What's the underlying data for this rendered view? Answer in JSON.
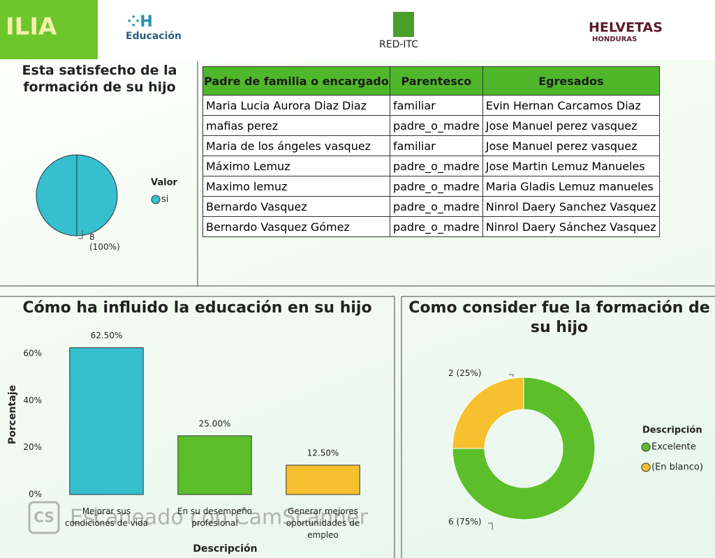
{
  "header": {
    "title": "ILIA",
    "logos": [
      "Educación",
      "RED-ITC",
      "HELVETAS",
      "HONDURAS"
    ]
  },
  "watermark": {
    "icon": "CS",
    "text": "Escaneado con CamScanner"
  },
  "table": {
    "columns": [
      "Padre de familia o encargado",
      "Parentesco",
      "Egresados"
    ],
    "rows": [
      [
        "Maria Lucia Aurora Diaz Diaz",
        "familiar",
        "Evin Hernan Carcamos Diaz"
      ],
      [
        "mafias perez",
        "padre_o_madre",
        "Jose Manuel perez vasquez"
      ],
      [
        "Maria de los ángeles vasquez",
        "familiar",
        "Jose Manuel perez vasquez"
      ],
      [
        "Máximo Lemuz",
        "padre_o_madre",
        "Jose Martin Lemuz Manueles"
      ],
      [
        "Maximo lemuz",
        "padre_o_madre",
        "Maria Gladis Lemuz manueles"
      ],
      [
        "Bernardo Vasquez",
        "padre_o_madre",
        "Ninrol Daery Sanchez Vasquez"
      ],
      [
        "Bernardo Vasquez Gómez",
        "padre_o_madre",
        "Ninrol Daery Sánchez Vasquez"
      ]
    ]
  },
  "chart_data": [
    {
      "type": "pie",
      "title": "Esta satisfecho de la formación de su hijo",
      "legend_title": "Valor",
      "categories": [
        "si"
      ],
      "values": [
        8
      ],
      "value_labels": [
        "8 (100%)"
      ],
      "colors": [
        "#35bfcf"
      ]
    },
    {
      "type": "bar",
      "title": "Cómo ha influido la educación en su hijo",
      "categories": [
        "Mejorar sus condiciones de vida",
        "En su desempeño profesional",
        "Generar mejores oportunidades de empleo"
      ],
      "values": [
        62.5,
        25,
        12.5
      ],
      "value_labels": [
        "62.50%",
        "25.00%",
        "12.50%"
      ],
      "colors": [
        "#35bfcf",
        "#5cbf2a",
        "#f7c02e"
      ],
      "xlabel": "Descripción",
      "ylabel": "Porcentaje",
      "ylim": [
        0,
        68
      ],
      "yticks": [
        {
          "value": 0,
          "label": "0%"
        },
        {
          "value": 20,
          "label": "20%"
        },
        {
          "value": 40,
          "label": "40%"
        },
        {
          "value": 60,
          "label": "60%"
        }
      ]
    },
    {
      "type": "donut",
      "title": "Como consider fue la formación de su hijo",
      "legend_title": "Descripción",
      "categories": [
        "Excelente",
        "(En blanco)"
      ],
      "values": [
        6,
        2
      ],
      "value_labels": [
        "6 (75%)",
        "2 (25%)"
      ],
      "colors": [
        "#5cbf2a",
        "#f7c02e"
      ]
    }
  ]
}
